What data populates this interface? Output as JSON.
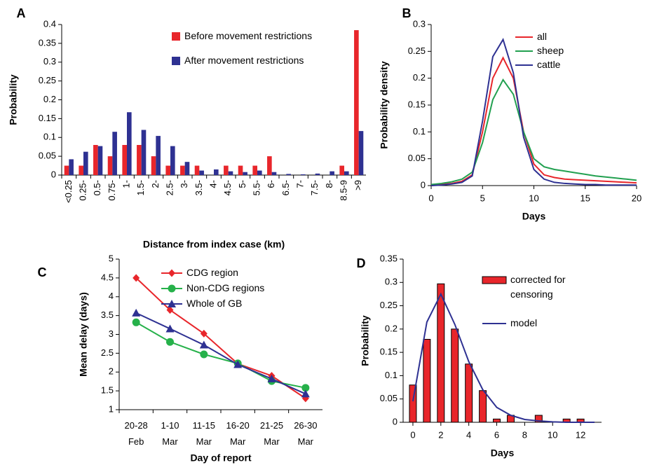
{
  "chart_data": [
    {
      "type": "bar",
      "panel": "A",
      "x_label": "Distance from index case (km)",
      "y_label": "Probability",
      "categories": [
        "<0.25",
        "0.25-",
        "0.5-",
        "0.75-",
        "1-",
        "1.5-",
        "2-",
        "2.5-",
        "3-",
        "3.5-",
        "4-",
        "4.5-",
        "5-",
        "5.5-",
        "6-",
        "6.5-",
        "7-",
        "7.5-",
        "8-",
        "8.5-9",
        ">9"
      ],
      "series": [
        {
          "name": "Before movement restrictions",
          "color": "#e8262b",
          "values": [
            0.025,
            0.025,
            0.08,
            0.05,
            0.08,
            0.08,
            0.05,
            0.025,
            0.025,
            0.025,
            0,
            0.025,
            0.025,
            0.025,
            0.05,
            0,
            0,
            0,
            0,
            0.025,
            0.385
          ]
        },
        {
          "name": "After movement restrictions",
          "color": "#2e3192",
          "values": [
            0.042,
            0.062,
            0.077,
            0.115,
            0.167,
            0.12,
            0.104,
            0.077,
            0.035,
            0.012,
            0.015,
            0.01,
            0.008,
            0.012,
            0.008,
            0.003,
            0.002,
            0.004,
            0.01,
            0.01,
            0.117
          ]
        }
      ],
      "ylim": [
        0,
        0.4
      ],
      "yticks": [
        0,
        0.05,
        0.1,
        0.15,
        0.2,
        0.25,
        0.3,
        0.35,
        0.4
      ],
      "legend": "upper right"
    },
    {
      "type": "line",
      "panel": "B",
      "x_label": "Days",
      "y_label": "Probability density",
      "x": [
        0,
        1,
        2,
        3,
        4,
        5,
        6,
        7,
        8,
        9,
        10,
        11,
        12,
        13,
        14,
        15,
        16,
        17,
        18,
        19,
        20
      ],
      "series": [
        {
          "name": "all",
          "color": "#e8262b",
          "values": [
            0,
            0.002,
            0.004,
            0.008,
            0.02,
            0.1,
            0.2,
            0.238,
            0.2,
            0.1,
            0.04,
            0.02,
            0.015,
            0.012,
            0.011,
            0.01,
            0.009,
            0.008,
            0.007,
            0.006,
            0.005
          ]
        },
        {
          "name": "sheep",
          "color": "#22a050",
          "values": [
            0.002,
            0.004,
            0.007,
            0.012,
            0.025,
            0.08,
            0.16,
            0.197,
            0.17,
            0.1,
            0.05,
            0.035,
            0.03,
            0.027,
            0.024,
            0.021,
            0.018,
            0.016,
            0.014,
            0.012,
            0.01
          ]
        },
        {
          "name": "cattle",
          "color": "#2e3192",
          "values": [
            0,
            0.001,
            0.003,
            0.006,
            0.018,
            0.12,
            0.24,
            0.272,
            0.21,
            0.09,
            0.03,
            0.012,
            0.006,
            0.004,
            0.003,
            0.002,
            0.002,
            0.001,
            0.001,
            0.001,
            0.001
          ]
        }
      ],
      "xlim": [
        0,
        20
      ],
      "xticks": [
        0,
        5,
        10,
        15,
        20
      ],
      "ylim": [
        0,
        0.3
      ],
      "yticks": [
        0,
        0.05,
        0.1,
        0.15,
        0.2,
        0.25,
        0.3
      ],
      "legend": "upper right"
    },
    {
      "type": "line",
      "panel": "C",
      "x_label": "Day of report",
      "y_label": "Mean delay (days)",
      "categories": [
        "20-28\nFeb",
        "1-10\nMar",
        "11-15\nMar",
        "16-20\nMar",
        "21-25\nMar",
        "26-30\nMar"
      ],
      "series": [
        {
          "name": "CDG region",
          "color": "#e8262b",
          "marker": "diamond",
          "values": [
            4.5,
            3.65,
            3.02,
            2.22,
            1.9,
            1.3
          ]
        },
        {
          "name": "Non-CDG regions",
          "color": "#26b14a",
          "marker": "circle",
          "values": [
            3.32,
            2.8,
            2.47,
            2.23,
            1.76,
            1.58
          ]
        },
        {
          "name": "Whole of GB",
          "color": "#2e3192",
          "marker": "triangle",
          "values": [
            3.57,
            3.15,
            2.72,
            2.2,
            1.82,
            1.42
          ]
        }
      ],
      "ylim": [
        1,
        5
      ],
      "yticks": [
        1,
        1.5,
        2,
        2.5,
        3,
        3.5,
        4,
        4.5,
        5
      ],
      "legend": "upper left"
    },
    {
      "type": "bar",
      "panel": "D",
      "x_label": "Days",
      "y_label": "Probability",
      "series": [
        {
          "name": "corrected for censoring",
          "color": "#e8262b",
          "x": [
            0,
            1,
            2,
            3,
            4,
            5,
            6,
            7,
            8,
            9,
            10,
            11,
            12
          ],
          "values": [
            0.08,
            0.178,
            0.297,
            0.2,
            0.125,
            0.068,
            0.007,
            0.015,
            0,
            0.015,
            0,
            0.007,
            0.007
          ]
        },
        {
          "name": "model",
          "type": "line",
          "color": "#2e3192",
          "x": [
            0,
            1,
            2,
            3,
            4,
            5,
            6,
            7,
            8,
            9,
            10,
            11,
            12,
            13
          ],
          "values": [
            0.045,
            0.215,
            0.275,
            0.21,
            0.13,
            0.07,
            0.032,
            0.015,
            0.006,
            0.003,
            0.001,
            0,
            0,
            0
          ]
        }
      ],
      "xlim": [
        -0.7,
        13.5
      ],
      "xticks": [
        0,
        2,
        4,
        6,
        8,
        10,
        12
      ],
      "ylim": [
        0,
        0.35
      ],
      "yticks": [
        0,
        0.05,
        0.1,
        0.15,
        0.2,
        0.25,
        0.3,
        0.35
      ],
      "legend": "upper right"
    }
  ]
}
